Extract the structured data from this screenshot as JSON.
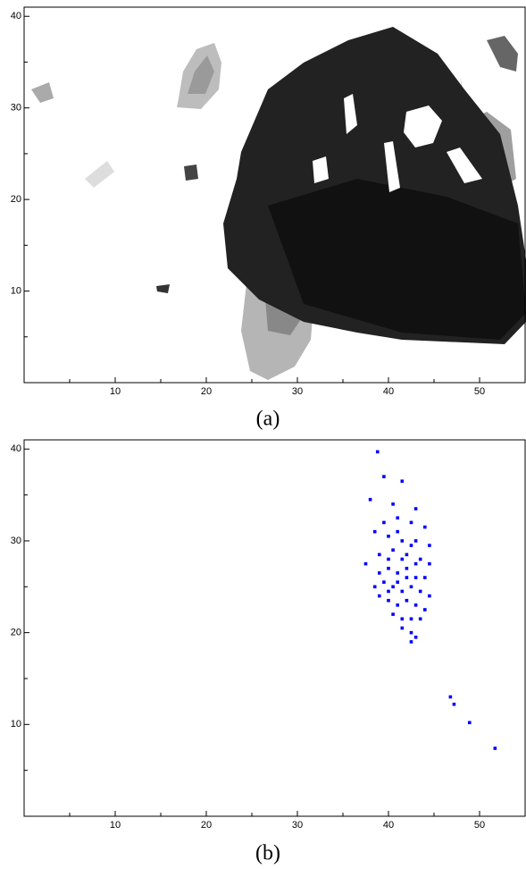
{
  "chart_data": [
    {
      "type": "image",
      "caption": "(a)",
      "xlim": [
        0,
        55
      ],
      "ylim": [
        0,
        41
      ],
      "xticks": [
        10,
        20,
        30,
        40,
        50
      ],
      "yticks": [
        10,
        20,
        30,
        40
      ],
      "xminor": [
        5,
        15,
        25,
        35,
        45,
        55
      ],
      "yminor": [
        5,
        15,
        25,
        35
      ]
    },
    {
      "type": "scatter",
      "caption": "(b)",
      "color": "#0000ff",
      "xlim": [
        0,
        55
      ],
      "ylim": [
        0,
        41
      ],
      "xticks": [
        10,
        20,
        30,
        40,
        50
      ],
      "yticks": [
        10,
        20,
        30,
        40
      ],
      "xminor": [
        5,
        15,
        25,
        35,
        45,
        55
      ],
      "yminor": [
        5,
        15,
        25,
        35
      ],
      "x": [
        38.8,
        39.5,
        41.5,
        38,
        40.5,
        43,
        46.8,
        47.2,
        48.9,
        51.7,
        38.5,
        39.5,
        41,
        42.5,
        44,
        40,
        41.5,
        43,
        44.5,
        37.5,
        39,
        40.5,
        42,
        43.5,
        44.5,
        39,
        40,
        41,
        42,
        43,
        44,
        38.5,
        39.5,
        40.5,
        41.5,
        42.5,
        43.5,
        44.5,
        39,
        40,
        41,
        42,
        43,
        44,
        40.5,
        41.5,
        42.5,
        43.5,
        41.5,
        42.5,
        43,
        42.5,
        40,
        41,
        42,
        43,
        41.5,
        40,
        42.5,
        41
      ],
      "y": [
        39.7,
        37,
        36.5,
        34.5,
        34,
        33.5,
        13,
        12.2,
        10.2,
        7.4,
        31,
        32,
        32.5,
        32,
        31.5,
        30.5,
        30,
        30,
        29.5,
        27.5,
        28.5,
        29,
        28.5,
        28,
        27.5,
        26.5,
        27,
        26.5,
        27,
        26,
        26,
        25,
        25.5,
        25,
        24.5,
        25,
        24.5,
        24,
        24,
        23.5,
        23,
        23.5,
        23,
        22.5,
        22,
        21.5,
        21.5,
        21.5,
        20.5,
        20,
        19.5,
        19,
        24.5,
        25.5,
        26,
        27.5,
        28,
        28,
        29.5,
        31
      ]
    }
  ]
}
